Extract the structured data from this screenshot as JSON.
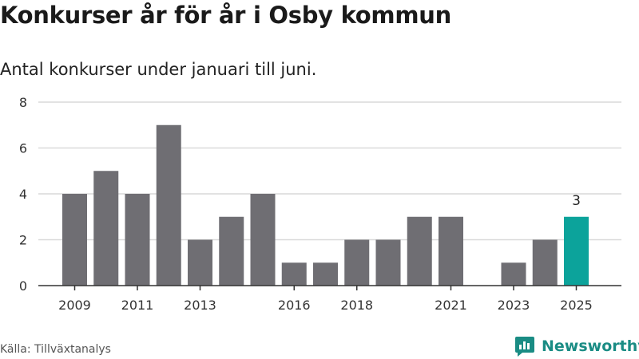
{
  "colors": {
    "bar": "#6f6e73",
    "highlight": "#0ca39b",
    "grid": "#d9d9d9",
    "axis": "#333333",
    "brand": "#1a8c84"
  },
  "source_text": "Källa: Tillväxtanalys",
  "brand": {
    "name": "Newsworthy",
    "icon": "newsworthy-logo-icon"
  },
  "chart_data": {
    "type": "bar",
    "title": "Konkurser år för år i Osby kommun",
    "subtitle": "Antal konkurser under januari till juni.",
    "xlabel": "",
    "ylabel": "",
    "categories": [
      "2009",
      "2010",
      "2011",
      "2012",
      "2013",
      "2014",
      "2015",
      "2016",
      "2017",
      "2018",
      "2019",
      "2020",
      "2021",
      "2022",
      "2023",
      "2024",
      "2025"
    ],
    "values": [
      4,
      5,
      4,
      7,
      2,
      3,
      4,
      1,
      1,
      2,
      2,
      3,
      3,
      0,
      1,
      2,
      3
    ],
    "highlight_index": 16,
    "data_labels": [
      {
        "category": "2025",
        "text": "3"
      }
    ],
    "x_tick_labels": [
      "2009",
      "2011",
      "2013",
      "2016",
      "2018",
      "2021",
      "2023",
      "2025"
    ],
    "y_ticks": [
      0,
      2,
      4,
      6,
      8
    ],
    "ylim": [
      0,
      8
    ],
    "grid": true,
    "legend": "none"
  }
}
